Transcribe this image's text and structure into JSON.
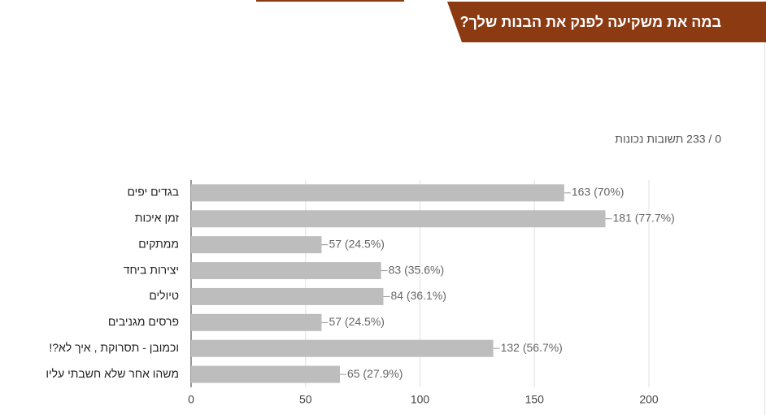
{
  "header": {
    "title": "במה את משקיעה לפנק את הבנות שלך?",
    "subtitle": "0 / 233 תשובות נכונות"
  },
  "chart_data": {
    "type": "bar",
    "orientation": "horizontal",
    "categories": [
      "בגדים יפים",
      "זמן איכות",
      "ממתקים",
      "יצירות ביחד",
      "טיולים",
      "פרסים מגניבים",
      "וכמובן - תסרוקת , איך לא?!",
      "משהו אחר שלא חשבתי עליו"
    ],
    "values": [
      163,
      181,
      57,
      83,
      84,
      57,
      132,
      65
    ],
    "value_labels": [
      "163 (70%)",
      "181 (77.7%)",
      "57 (24.5%)",
      "83 (35.6%)",
      "84 (36.1%)",
      "57 (24.5%)",
      "132 (56.7%)",
      "65 (27.9%)"
    ],
    "color": "#bdbdbd",
    "xlim": [
      0,
      200
    ],
    "xticks": [
      0,
      50,
      100,
      150,
      200
    ],
    "grid": true
  }
}
